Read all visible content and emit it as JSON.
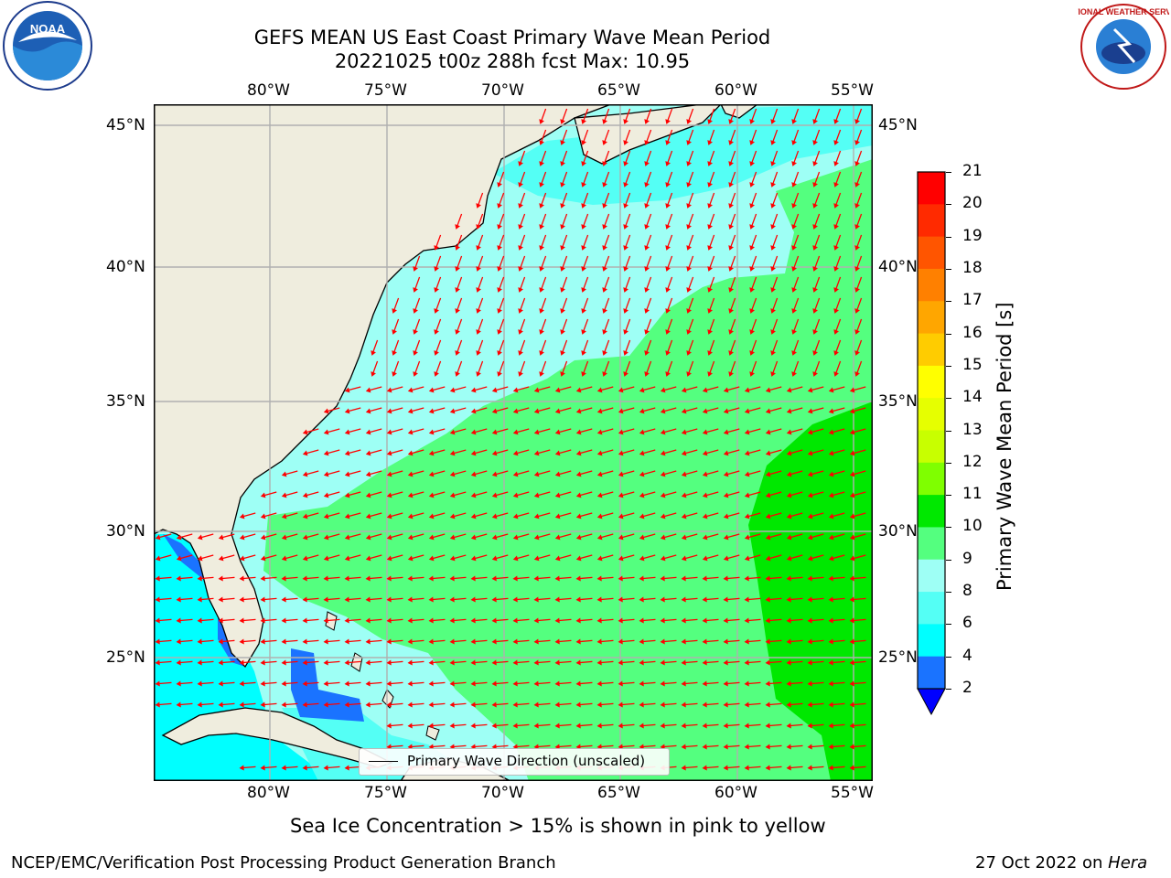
{
  "title": {
    "line1": "GEFS MEAN US East Coast Primary Wave Mean Period",
    "line2": "20221025 t00z 288h fcst   Max: 10.95"
  },
  "map": {
    "lon_ticks": [
      "80°W",
      "75°W",
      "70°W",
      "65°W",
      "60°W",
      "55°W"
    ],
    "lat_ticks": [
      "45°N",
      "40°N",
      "35°N",
      "30°N",
      "25°N"
    ],
    "extent": {
      "lon_min": -85,
      "lon_max": -54.3,
      "lat_min": 20,
      "lat_max": 46
    },
    "vector_direction": "toward west-southwest",
    "colors": {
      "land": "#efedde",
      "ocean_light": "#9efff5",
      "ocean_mid": "#54ff7f",
      "ocean_high": "#00e800",
      "ocean_low": "#00ffff",
      "ocean_lowest": "#1a73ff",
      "grid": "#b0b0b0",
      "arrows": "#ff0000"
    }
  },
  "legend": {
    "label": "Primary Wave Direction (unscaled)"
  },
  "colorbar": {
    "label": "Primary Wave Mean Period [s]",
    "ticks": [
      "21",
      "20",
      "19",
      "18",
      "17",
      "16",
      "15",
      "14",
      "13",
      "12",
      "11",
      "10",
      "9",
      "8",
      "6",
      "4",
      "2"
    ],
    "colors": [
      "#ff0000",
      "#ff2a00",
      "#ff5500",
      "#ff8000",
      "#ffa600",
      "#ffcc00",
      "#ffff00",
      "#e6ff00",
      "#c8ff00",
      "#7fff00",
      "#00e800",
      "#54ff7f",
      "#9efff5",
      "#54fff5",
      "#00ffff",
      "#1a73ff",
      "#0000ff"
    ]
  },
  "bottom_note": "Sea Ice Concentration > 15% is shown in pink to yellow",
  "footer": {
    "left": "NCEP/EMC/Verification Post Processing Product Generation Branch",
    "right_prefix": "27 Oct 2022 on ",
    "right_host": "Hera"
  },
  "logos": {
    "noaa": "NOAA",
    "nws": "NATIONAL WEATHER SERVICE"
  }
}
